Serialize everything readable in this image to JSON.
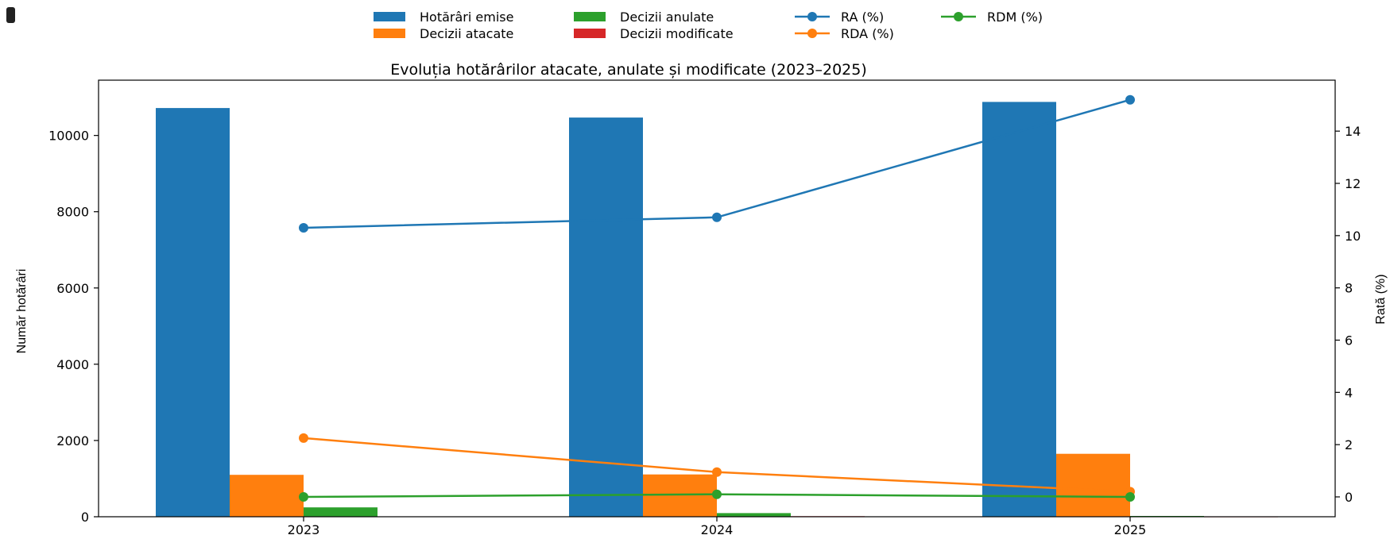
{
  "chart_data": {
    "type": "bar",
    "title": "Evoluția hotărârilor atacate, anulate și modificate (2023–2025)",
    "xlabel": "",
    "ylabel": "Număr hotărâri",
    "y2label": "Rată (%)",
    "categories": [
      "2023",
      "2024",
      "2025"
    ],
    "ylim": [
      0,
      11450
    ],
    "y2lim": [
      -0.76,
      15.95
    ],
    "yticks": [
      0,
      2000,
      4000,
      6000,
      8000,
      10000
    ],
    "y2ticks": [
      0,
      2,
      4,
      6,
      8,
      10,
      12,
      14
    ],
    "grid": false,
    "legend_position": "top-center",
    "bar_series": [
      {
        "name": "Hotărâri emise",
        "color": "#1f77b4",
        "values": [
          10720,
          10470,
          10880
        ]
      },
      {
        "name": "Decizii atacate",
        "color": "#ff7f0e",
        "values": [
          1100,
          1110,
          1650
        ]
      },
      {
        "name": "Decizii anulate",
        "color": "#2ca02c",
        "values": [
          245,
          95,
          20
        ]
      },
      {
        "name": "Decizii modificate",
        "color": "#d62728",
        "values": [
          10,
          15,
          5
        ]
      }
    ],
    "line_series": [
      {
        "name": "RA (%)",
        "color": "#1f77b4",
        "axis": "right",
        "values": [
          10.3,
          10.7,
          15.2
        ]
      },
      {
        "name": "RDA (%)",
        "color": "#ff7f0e",
        "axis": "right",
        "values": [
          2.25,
          0.95,
          0.2
        ]
      },
      {
        "name": "RDM (%)",
        "color": "#2ca02c",
        "axis": "right",
        "values": [
          0.0,
          0.1,
          0.0
        ]
      }
    ]
  },
  "legend": {
    "items": [
      {
        "label": "Hotărâri emise",
        "kind": "bar",
        "color": "#1f77b4"
      },
      {
        "label": "Decizii atacate",
        "kind": "bar",
        "color": "#ff7f0e"
      },
      {
        "label": "Decizii anulate",
        "kind": "bar",
        "color": "#2ca02c"
      },
      {
        "label": "Decizii modificate",
        "kind": "bar",
        "color": "#d62728"
      },
      {
        "label": "RA (%)",
        "kind": "line",
        "color": "#1f77b4"
      },
      {
        "label": "RDA (%)",
        "kind": "line",
        "color": "#ff7f0e"
      },
      {
        "label": "RDM (%)",
        "kind": "line",
        "color": "#2ca02c"
      }
    ]
  }
}
